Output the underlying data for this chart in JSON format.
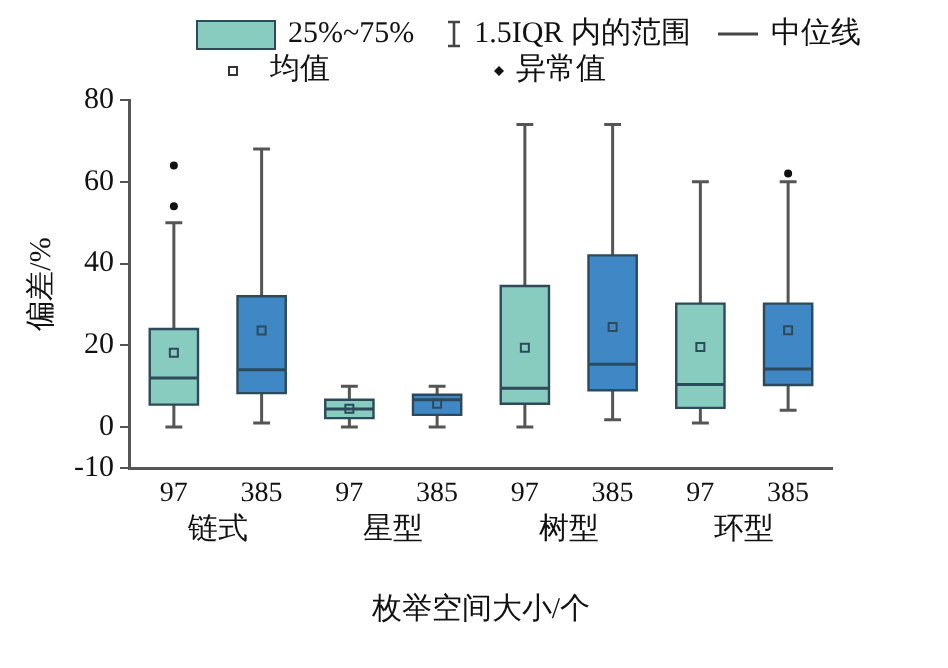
{
  "chart_data": {
    "type": "box",
    "xlabel": "枚举空间大小/个",
    "ylabel": "偏差/%",
    "categories": [
      "链式",
      "星型",
      "树型",
      "环型"
    ],
    "series": [
      {
        "name": "97",
        "color": "#88cbbf",
        "boxes": [
          {
            "low": 0,
            "q1": 5.5,
            "median": 12,
            "q3": 24,
            "high": 50,
            "mean": 18.2,
            "outliers": [
              64,
              54
            ]
          },
          {
            "low": 0,
            "q1": 2.2,
            "median": 4.4,
            "q3": 6.7,
            "high": 10,
            "mean": 4.5
          },
          {
            "low": 0,
            "q1": 5.7,
            "median": 9.5,
            "q3": 34.5,
            "high": 74,
            "mean": 19.4
          },
          {
            "low": 1,
            "q1": 4.7,
            "median": 10.4,
            "q3": 30.2,
            "high": 60,
            "mean": 19.6
          }
        ]
      },
      {
        "name": "385",
        "color": "#3f88c5",
        "boxes": [
          {
            "low": 1,
            "q1": 8.3,
            "median": 14,
            "q3": 32,
            "high": 68,
            "mean": 23.6
          },
          {
            "low": 0,
            "q1": 3,
            "median": 6.7,
            "q3": 7.9,
            "high": 10,
            "mean": 5.7
          },
          {
            "low": 1.8,
            "q1": 9,
            "median": 15.4,
            "q3": 42,
            "high": 74,
            "mean": 24.5
          },
          {
            "low": 4.1,
            "q1": 10.3,
            "median": 14.2,
            "q3": 30.2,
            "high": 60,
            "mean": 23.7,
            "outliers": [
              62
            ]
          }
        ]
      }
    ],
    "ylim": [
      -10,
      80
    ],
    "yticks": [
      -10,
      0,
      20,
      40,
      60,
      80
    ],
    "grid": false,
    "marker": "square",
    "annotations": [
      "25%~75%",
      "1.5IQR 内的范围",
      "中位线",
      "均值",
      "异常值"
    ]
  }
}
